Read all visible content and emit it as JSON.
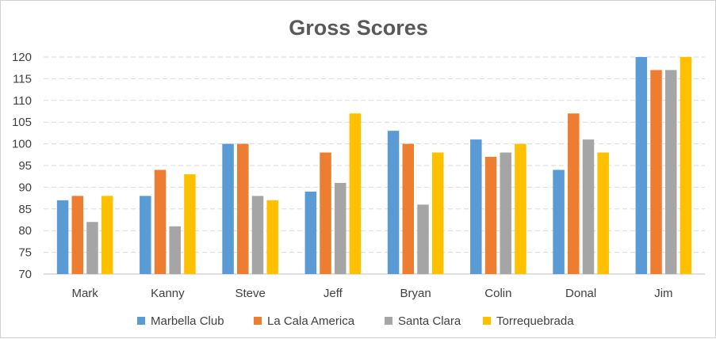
{
  "chart_data": {
    "type": "bar",
    "title": "Gross Scores",
    "xlabel": "",
    "ylabel": "",
    "categories": [
      "Mark",
      "Kanny",
      "Steve",
      "Jeff",
      "Bryan",
      "Colin",
      "Donal",
      "Jim"
    ],
    "series": [
      {
        "name": "Marbella Club",
        "color": "#5B9BD5",
        "values": [
          87,
          88,
          100,
          89,
          103,
          101,
          94,
          120
        ]
      },
      {
        "name": "La Cala America",
        "color": "#ED7D31",
        "values": [
          88,
          94,
          100,
          98,
          100,
          97,
          107,
          117
        ]
      },
      {
        "name": "Santa Clara",
        "color": "#A5A5A5",
        "values": [
          82,
          81,
          88,
          91,
          86,
          98,
          101,
          117
        ]
      },
      {
        "name": "Torrequebrada",
        "color": "#FFC000",
        "values": [
          88,
          93,
          87,
          107,
          98,
          100,
          98,
          120
        ]
      }
    ],
    "ylim": [
      70,
      120
    ],
    "yticks": [
      70,
      75,
      80,
      85,
      90,
      95,
      100,
      105,
      110,
      115,
      120
    ],
    "grid": true,
    "legend_position": "bottom"
  }
}
